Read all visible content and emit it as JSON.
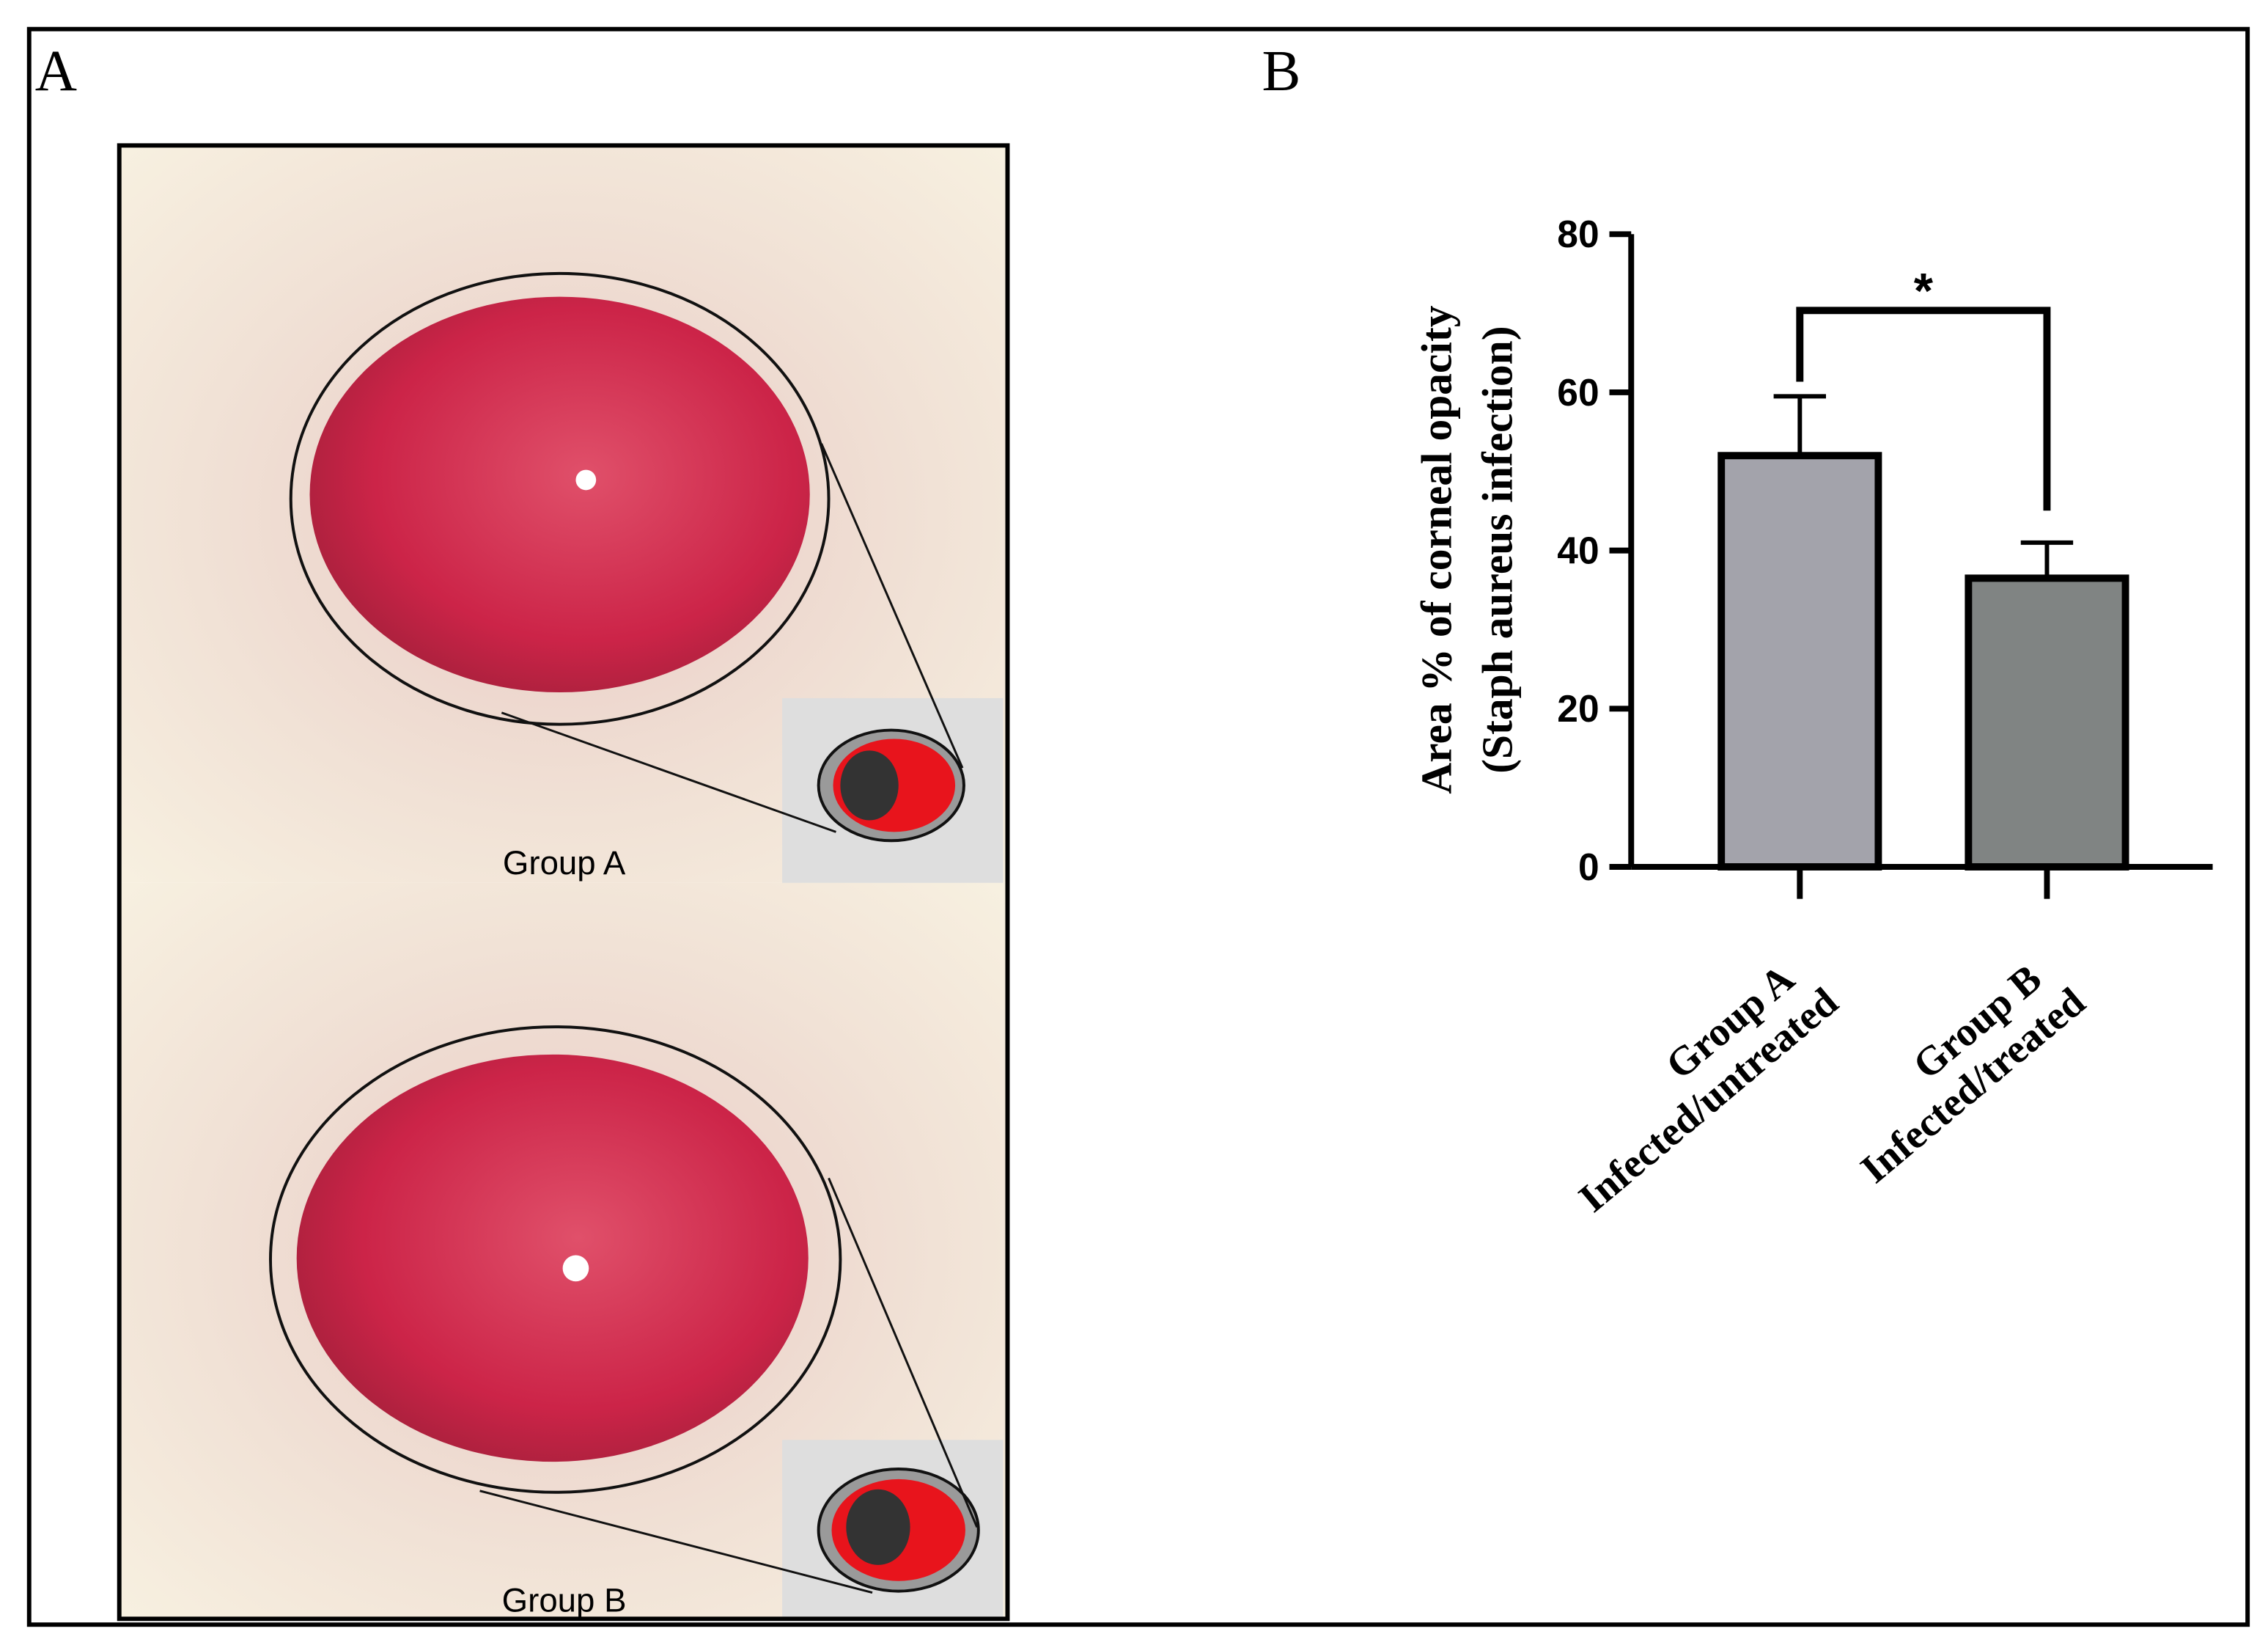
{
  "panel_a": {
    "label": "A",
    "captions": [
      "Group A",
      "Group B"
    ]
  },
  "chart_data": {
    "type": "bar",
    "panel_label": "B",
    "ylabel": [
      "Area % of corneal opacity",
      "(Staph aureus infection)"
    ],
    "categories": [
      "Group A",
      "Group B"
    ],
    "category_sublabels": [
      "Infected/untreated",
      "Infected/treated"
    ],
    "values": [
      52,
      36.5
    ],
    "errors": [
      7.5,
      4.5
    ],
    "colors": [
      "#a3a3ab",
      "#808483"
    ],
    "ylim": [
      0,
      80
    ],
    "yticks": [
      0,
      20,
      40,
      60,
      80
    ],
    "significance": "*"
  }
}
